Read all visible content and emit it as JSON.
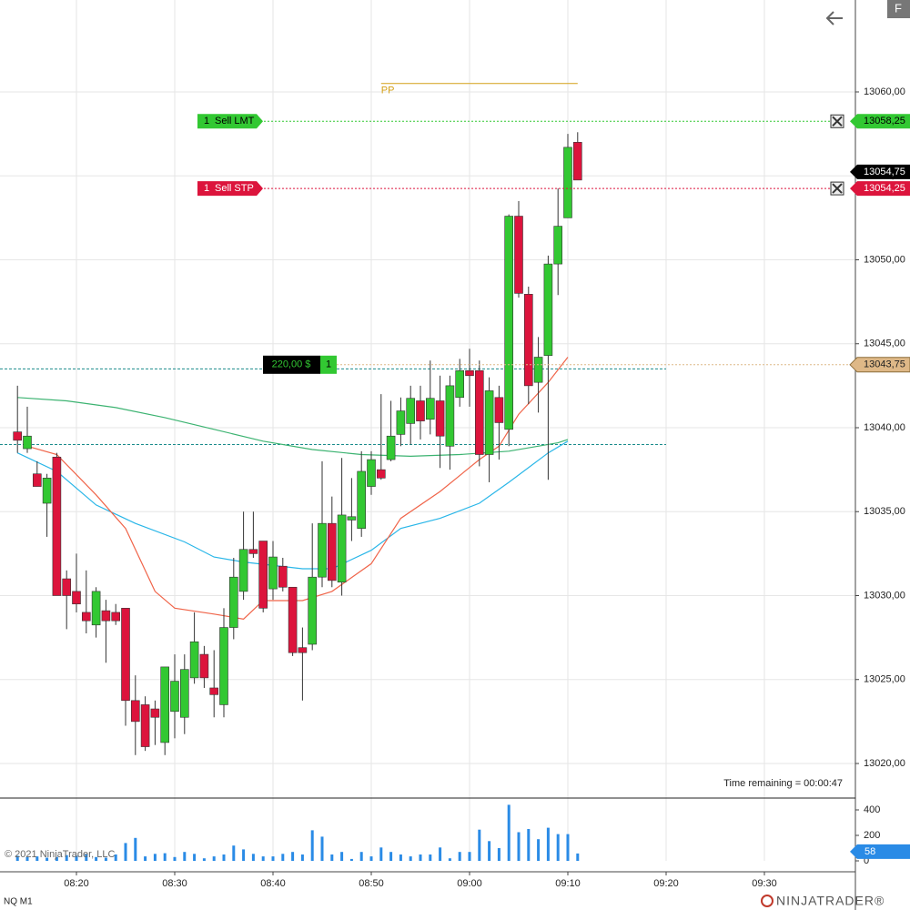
{
  "chart_data": {
    "type": "candlestick",
    "x": [
      494,
      495,
      496,
      497,
      498,
      499,
      500,
      501,
      502,
      503,
      504,
      505,
      506,
      507,
      508,
      509,
      510,
      511,
      512,
      513,
      514,
      515,
      516,
      517,
      518,
      519,
      520,
      521,
      522,
      523,
      524,
      525,
      526,
      527,
      528,
      529,
      530,
      531,
      532,
      533,
      534,
      535,
      536,
      537,
      538,
      539,
      540,
      541,
      542,
      543,
      544,
      545,
      546,
      547,
      548,
      549,
      550,
      551
    ],
    "open": [
      13039.75,
      13038.75,
      13037.25,
      13035.5,
      13038.25,
      13031,
      13030.25,
      13029,
      13028.25,
      13029.1,
      13029,
      13029.25,
      13023.75,
      13023.5,
      13023.25,
      13021.25,
      13023.1,
      13022.75,
      13025.1,
      13026.5,
      13024.5,
      13023.5,
      13028.1,
      13030.25,
      13032.75,
      13033.25,
      13030.4,
      13031.75,
      13030.5,
      13026.9,
      13027.1,
      13031.1,
      13034.3,
      13030.8,
      13034.5,
      13034,
      13036.5,
      13037.5,
      13038.1,
      13039.6,
      13040.25,
      13041.6,
      13040.5,
      13041.6,
      13038.9,
      13041.8,
      13043.4,
      13043.4,
      13038.4,
      13041.8,
      13039.9,
      13052.6,
      13047.95,
      13042.7,
      13044.3,
      13049.75,
      13052.5,
      13057
    ],
    "high": [
      13042.5,
      13041.25,
      13038,
      13037.25,
      13038.5,
      13031.5,
      13032.5,
      13031.5,
      13030.5,
      13029.75,
      13029.5,
      13029.25,
      13025.25,
      13024,
      13023.75,
      13025.75,
      13026.5,
      13026.5,
      13029,
      13027,
      13026.75,
      13029.25,
      13032.25,
      13035,
      13035,
      13033.25,
      13033.25,
      13032.25,
      13030.5,
      13028.1,
      13034.3,
      13038,
      13035.9,
      13038.2,
      13037,
      13038.6,
      13038.6,
      13042,
      13041.6,
      13041.8,
      13042.5,
      13042.5,
      13044,
      13043.1,
      13043.1,
      13044.1,
      13044.7,
      13044,
      13043,
      13042.5,
      13052.7,
      13053.5,
      13048.4,
      13045.4,
      13050.25,
      13054.25,
      13057.5,
      13057.6
    ],
    "low": [
      13038.5,
      13038.5,
      13036.5,
      13033.5,
      13030,
      13028,
      13029,
      13027.75,
      13027.5,
      13026,
      13028.25,
      13022.25,
      13020.5,
      13020.75,
      13021.1,
      13020.5,
      13021.5,
      13021.75,
      13024.75,
      13024.5,
      13022.75,
      13022.75,
      13027.4,
      13029.75,
      13032.25,
      13029,
      13029.75,
      13030.25,
      13026.4,
      13023.75,
      13026.75,
      13030.5,
      13030.5,
      13030,
      13033.25,
      13033.5,
      13036,
      13036.9,
      13038,
      13038.9,
      13039,
      13039.3,
      13039.6,
      13037.6,
      13037.5,
      13041.25,
      13041.25,
      13037.7,
      13036.75,
      13038.1,
      13038.9,
      13047.75,
      13041.4,
      13040.9,
      13036.9,
      13047.9,
      13052.5,
      13054.75
    ],
    "close": [
      13039.25,
      13039.5,
      13036.5,
      13037,
      13030,
      13030,
      13029.5,
      13028.5,
      13030.25,
      13028.5,
      13028.5,
      13023.75,
      13022.5,
      13021,
      13022.75,
      13025.75,
      13024.9,
      13025.6,
      13027.25,
      13025.1,
      13024.1,
      13028.1,
      13031.1,
      13032.75,
      13032.5,
      13029.25,
      13032.3,
      13030.5,
      13026.6,
      13026.6,
      13031.1,
      13034.3,
      13030.9,
      13034.8,
      13034.7,
      13037.4,
      13038.1,
      13037,
      13039.5,
      13041,
      13041.75,
      13040.4,
      13041.75,
      13039.5,
      13042.5,
      13043.4,
      13043.1,
      13038.4,
      13042.2,
      13040.3,
      13052.6,
      13048,
      13042.5,
      13044.2,
      13049.75,
      13052,
      13056.7,
      13054.75
    ],
    "up_color": "#32c832",
    "down_color": "#dc143c",
    "xlim": [
      492.222,
      579.26
    ],
    "xticks": [
      {
        "value": 500,
        "label": "08:20"
      },
      {
        "value": 510,
        "label": "08:30"
      },
      {
        "value": 520,
        "label": "08:40"
      },
      {
        "value": 530,
        "label": "08:50"
      },
      {
        "value": 540,
        "label": "09:00"
      },
      {
        "value": 550,
        "label": "09:10"
      },
      {
        "value": 560,
        "label": "09:20"
      },
      {
        "value": 570,
        "label": "09:30"
      }
    ],
    "ylim": [
      13017.94,
      13065.474
    ],
    "yticks": [
      {
        "value": 13020,
        "label": "13020,00"
      },
      {
        "value": 13025,
        "label": "13025,00"
      },
      {
        "value": 13030,
        "label": "13030,00"
      },
      {
        "value": 13035,
        "label": "13035,00"
      },
      {
        "value": 13040,
        "label": "13040,00"
      },
      {
        "value": 13045,
        "label": "13045,00"
      },
      {
        "value": 13050,
        "label": "13050,00"
      },
      {
        "value": 13055,
        "label": "13055,00"
      },
      {
        "value": 13060,
        "label": "13060,00"
      }
    ],
    "grid": true,
    "series": [
      {
        "color": "#3cb371",
        "x": [
          494,
          499,
          504,
          509,
          514,
          519,
          524,
          529,
          534,
          539,
          544,
          549,
          550
        ],
        "values": [
          13041.8,
          13041.6,
          13041.2,
          13040.6,
          13039.9,
          13039.2,
          13038.7,
          13038.4,
          13038.3,
          13038.4,
          13038.6,
          13039.1,
          13039.3
        ]
      },
      {
        "color": "#29b6e8",
        "x": [
          494,
          498,
          502,
          506,
          511,
          514,
          517,
          523,
          526,
          530,
          533,
          537,
          541,
          544,
          548,
          550
        ],
        "values": [
          13038.5,
          13037.4,
          13035.4,
          13034.3,
          13033.2,
          13032.3,
          13032,
          13031.6,
          13031.6,
          13032.7,
          13034,
          13034.6,
          13035.5,
          13036.75,
          13038.5,
          13039.2
        ]
      },
      {
        "color": "#f06449",
        "x": [
          495,
          498,
          502,
          505,
          508,
          510,
          514,
          517,
          519,
          523,
          526,
          530,
          533,
          537,
          541,
          543,
          545,
          548,
          550
        ],
        "values": [
          13038.9,
          13038.4,
          13036,
          13034,
          13030.25,
          13029.25,
          13028.9,
          13028.6,
          13029.7,
          13029.7,
          13030.25,
          13031.9,
          13034.6,
          13036.2,
          13038.1,
          13038.9,
          13040.8,
          13042.7,
          13044.2
        ]
      }
    ],
    "reference_lines": {
      "color": "#1a8c8c",
      "values": [
        13043.5,
        13039
      ]
    },
    "pivot": {
      "label": "PP",
      "value": 13060.5,
      "x": [
        531,
        551
      ],
      "color": "#d4a017"
    },
    "orders": [
      {
        "quantity": 1,
        "label": "Sell LMT",
        "price": {
          "value": 13058.25,
          "label": "13058,25"
        },
        "color": "#32c832"
      },
      {
        "quantity": 1,
        "label": "Sell STP",
        "price": {
          "value": 13054.25,
          "label": "13054,25"
        },
        "color": "#dc143c"
      }
    ],
    "position": {
      "quantity": 1,
      "pnl": {
        "value": 220,
        "label": "220,00 $"
      },
      "price": {
        "value": 13043.75,
        "label": "13043,75"
      },
      "color": "#deb887"
    },
    "last_price": {
      "value": 13054.75,
      "label": "13054,75"
    },
    "volume": {
      "color": "#2a8be6",
      "values": [
        40,
        30,
        35,
        25,
        30,
        45,
        40,
        55,
        30,
        25,
        50,
        140,
        180,
        35,
        55,
        60,
        30,
        70,
        55,
        20,
        35,
        50,
        120,
        90,
        55,
        35,
        35,
        55,
        70,
        50,
        240,
        190,
        50,
        70,
        15,
        70,
        35,
        105,
        70,
        50,
        35,
        50,
        50,
        105,
        20,
        70,
        70,
        245,
        155,
        100,
        440,
        225,
        250,
        170,
        260,
        210,
        210,
        58
      ],
      "ylim": [
        0,
        485.7
      ],
      "yticks": [
        0,
        200,
        400
      ]
    },
    "time_remaining": "Time remaining = 00:00:47"
  },
  "footer": {
    "copyright": "© 2021 NinjaTrader, LLC",
    "instrument": "NQ M1",
    "logo": "NINJATRADER®"
  },
  "toolbar": {
    "button": "F"
  }
}
